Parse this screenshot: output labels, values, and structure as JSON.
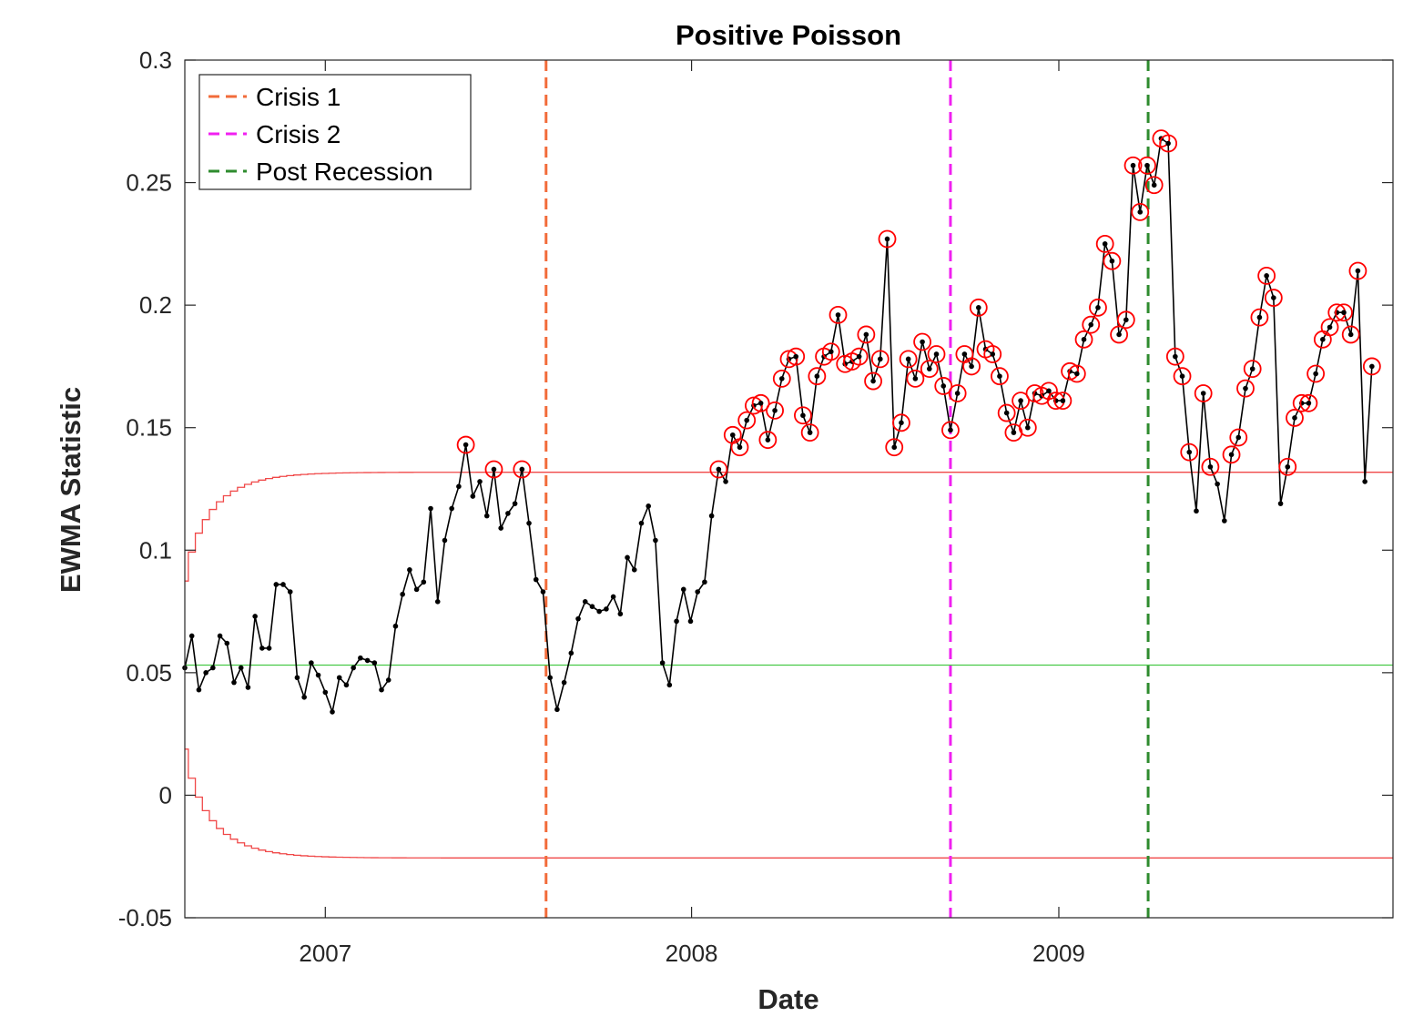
{
  "chart_data": {
    "type": "line",
    "title": "Positive Poisson",
    "xlabel": "Date",
    "ylabel": "EWMA Statistic",
    "xlim": [
      "2006-08-14",
      "2009-11-30"
    ],
    "ylim": [
      -0.05,
      0.3
    ],
    "yticks": [
      -0.05,
      0,
      0.05,
      0.1,
      0.15,
      0.2,
      0.25,
      0.3
    ],
    "ytick_labels": [
      "-0.05",
      "0",
      "0.05",
      "0.1",
      "0.15",
      "0.2",
      "0.25",
      "0.3"
    ],
    "xticks": [
      "2007-01-01",
      "2008-01-01",
      "2009-01-01"
    ],
    "xtick_labels": [
      "2007",
      "2008",
      "2009"
    ],
    "grid": false,
    "legend_position": "top-left",
    "legend": [
      {
        "label": "Crisis 1",
        "color": "#F26B3A",
        "style": "dashed"
      },
      {
        "label": "Crisis 2",
        "color": "#F020F0",
        "style": "dashed"
      },
      {
        "label": "Post Recession",
        "color": "#2E8B2E",
        "style": "dashed"
      }
    ],
    "vertical_lines": [
      {
        "name": "Crisis 1",
        "date": "2007-08-09",
        "color": "#F26B3A"
      },
      {
        "name": "Crisis 2",
        "date": "2008-09-15",
        "color": "#F020F0"
      },
      {
        "name": "Post Recession",
        "date": "2009-03-31",
        "color": "#2E8B2E"
      }
    ],
    "center_line": {
      "value": 0.0531,
      "color": "#47C947"
    },
    "control_limits": {
      "ucl_asymptote": 0.1318,
      "lcl_asymptote": -0.0256,
      "ucl_start": 0.0874,
      "lcl_start": 0.0188,
      "color": "#F04848"
    },
    "series": {
      "start_date": "2006-08-14",
      "interval_days": 7,
      "color": "#000000",
      "outlier_color": "#FF0000",
      "values": [
        0.052,
        0.065,
        0.043,
        0.05,
        0.052,
        0.065,
        0.062,
        0.046,
        0.052,
        0.044,
        0.073,
        0.06,
        0.06,
        0.086,
        0.086,
        0.083,
        0.048,
        0.04,
        0.054,
        0.049,
        0.042,
        0.034,
        0.048,
        0.045,
        0.052,
        0.056,
        0.055,
        0.054,
        0.043,
        0.047,
        0.069,
        0.082,
        0.092,
        0.084,
        0.087,
        0.117,
        0.079,
        0.104,
        0.117,
        0.126,
        0.143,
        0.122,
        0.128,
        0.114,
        0.133,
        0.109,
        0.115,
        0.119,
        0.133,
        0.111,
        0.088,
        0.083,
        0.048,
        0.035,
        0.046,
        0.058,
        0.072,
        0.079,
        0.077,
        0.075,
        0.076,
        0.081,
        0.074,
        0.097,
        0.092,
        0.111,
        0.118,
        0.104,
        0.054,
        0.045,
        0.071,
        0.084,
        0.071,
        0.083,
        0.087,
        0.114,
        0.133,
        0.128,
        0.147,
        0.142,
        0.153,
        0.159,
        0.16,
        0.145,
        0.157,
        0.17,
        0.178,
        0.179,
        0.155,
        0.148,
        0.171,
        0.179,
        0.181,
        0.196,
        0.176,
        0.177,
        0.179,
        0.188,
        0.169,
        0.178,
        0.227,
        0.142,
        0.152,
        0.178,
        0.17,
        0.185,
        0.174,
        0.18,
        0.167,
        0.149,
        0.164,
        0.18,
        0.175,
        0.199,
        0.182,
        0.18,
        0.171,
        0.156,
        0.148,
        0.161,
        0.15,
        0.164,
        0.163,
        0.165,
        0.161,
        0.161,
        0.173,
        0.172,
        0.186,
        0.192,
        0.199,
        0.225,
        0.218,
        0.188,
        0.194,
        0.257,
        0.238,
        0.257,
        0.249,
        0.268,
        0.266,
        0.179,
        0.171,
        0.14,
        0.116,
        0.164,
        0.134,
        0.127,
        0.112,
        0.139,
        0.146,
        0.166,
        0.174,
        0.195,
        0.212,
        0.203,
        0.119,
        0.134,
        0.154,
        0.16,
        0.16,
        0.172,
        0.186,
        0.191,
        0.197,
        0.197,
        0.188,
        0.214,
        0.128,
        0.175
      ]
    }
  }
}
